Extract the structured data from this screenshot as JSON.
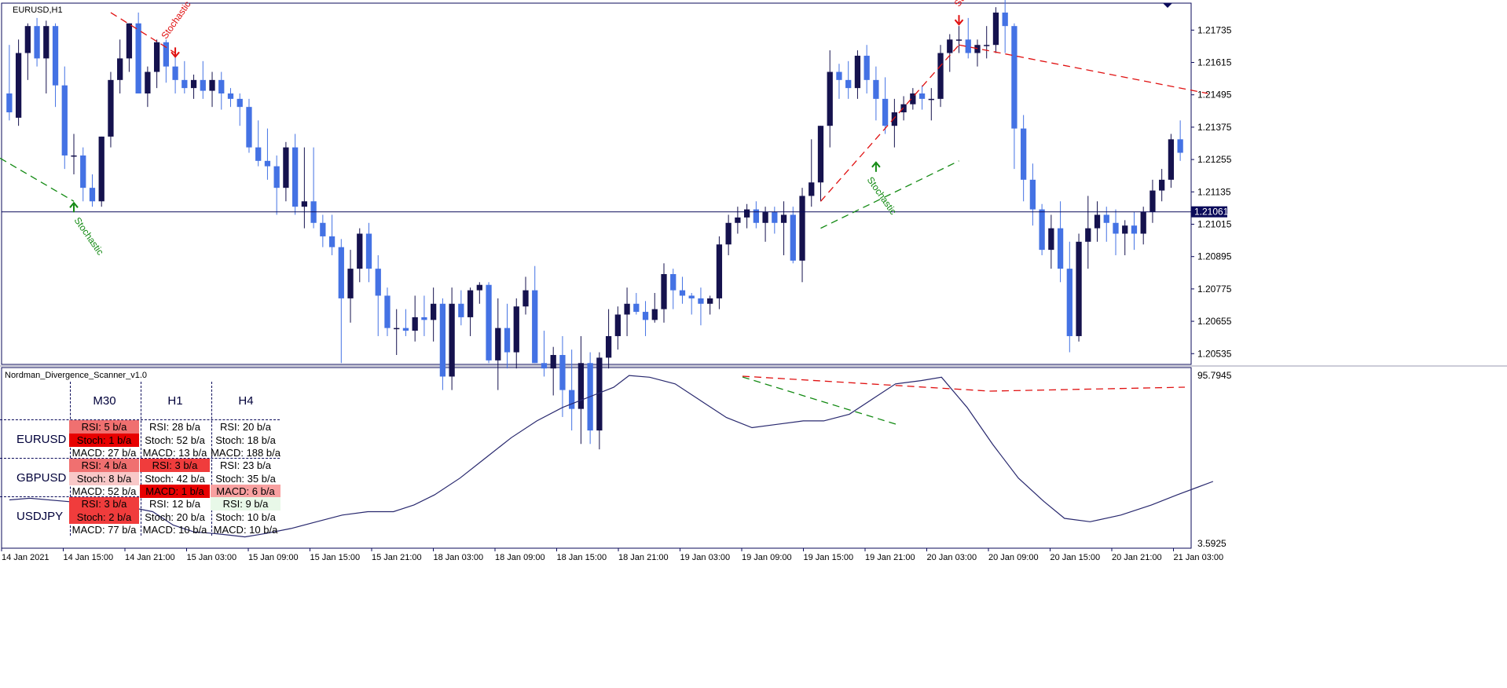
{
  "window": {
    "symbol_title": "EURUSD,H1",
    "indicator_title": "Nordman_Divergence_Scanner_v1.0",
    "current_price_label": "1.21061"
  },
  "colors": {
    "bull": "#4472e4",
    "bear": "#15124e",
    "axis": "#0a0a5a",
    "divergence_bear": "#e01010",
    "divergence_bull": "#138a13",
    "stoch_line": "#28286e"
  },
  "price_axis": {
    "ticks": [
      "1.21735",
      "1.21615",
      "1.21495",
      "1.21375",
      "1.21255",
      "1.21135",
      "1.21015",
      "1.20895",
      "1.20775",
      "1.20655",
      "1.20535"
    ],
    "range": [
      1.20495,
      1.21835
    ]
  },
  "indicator_axis": {
    "ticks": [
      "95.7945",
      "3.5925"
    ]
  },
  "time_axis": {
    "labels": [
      "14 Jan 2021",
      "14 Jan 15:00",
      "14 Jan 21:00",
      "15 Jan 03:00",
      "15 Jan 09:00",
      "15 Jan 15:00",
      "15 Jan 21:00",
      "18 Jan 03:00",
      "18 Jan 09:00",
      "18 Jan 15:00",
      "18 Jan 21:00",
      "19 Jan 03:00",
      "19 Jan 09:00",
      "19 Jan 15:00",
      "19 Jan 21:00",
      "20 Jan 03:00",
      "20 Jan 09:00",
      "20 Jan 15:00",
      "20 Jan 21:00",
      "21 Jan 03:00"
    ]
  },
  "annotations": {
    "stoch_label": "Stochastic"
  },
  "scanner": {
    "timeframes": [
      "M30",
      "H1",
      "H4"
    ],
    "rows": [
      {
        "symbol": "EURUSD",
        "cells": [
          [
            "RSI: 5 b/a",
            "Stoch: 1 b/a",
            "MACD: 27 b/a"
          ],
          [
            "RSI: 28 b/a",
            "Stoch: 52 b/a",
            "MACD: 13 b/a"
          ],
          [
            "RSI: 20 b/a",
            "Stoch: 18 b/a",
            "MACD: 188 b/a"
          ]
        ]
      },
      {
        "symbol": "GBPUSD",
        "cells": [
          [
            "RSI: 4 b/a",
            "Stoch: 8 b/a",
            "MACD: 52 b/a"
          ],
          [
            "RSI: 3 b/a",
            "Stoch: 42 b/a",
            "MACD: 1 b/a"
          ],
          [
            "RSI: 23 b/a",
            "Stoch: 35 b/a",
            "MACD: 6 b/a"
          ]
        ]
      },
      {
        "symbol": "USDJPY",
        "cells": [
          [
            "RSI: 3 b/a",
            "Stoch: 2 b/a",
            "MACD: 77 b/a"
          ],
          [
            "RSI: 12 b/a",
            "Stoch: 20 b/a",
            "MACD: 10 b/a"
          ],
          [
            "RSI: 9 b/a",
            "Stoch: 10 b/a",
            "MACD: 10 b/a"
          ]
        ]
      }
    ],
    "highlight_colors": [
      [
        [
          "#f07070",
          "#e80000",
          ""
        ],
        [
          "",
          "",
          ""
        ],
        [
          "",
          "",
          ""
        ]
      ],
      [
        [
          "#f07070",
          "#f8c8c8",
          ""
        ],
        [
          "#f03c3c",
          "",
          "#e80000"
        ],
        [
          "",
          "",
          "#f8a0a0"
        ]
      ],
      [
        [
          "#f03c3c",
          "#f03c3c",
          ""
        ],
        [
          "",
          "",
          ""
        ],
        [
          "#e8f8e8",
          "",
          ""
        ]
      ]
    ]
  },
  "chart_data": {
    "type": "candlestick",
    "symbol": "EURUSD",
    "timeframe": "H1",
    "ohlc": [
      [
        1.215,
        1.2168,
        1.214,
        1.2143
      ],
      [
        1.2141,
        1.217,
        1.2138,
        1.2165
      ],
      [
        1.2165,
        1.2176,
        1.2155,
        1.2175
      ],
      [
        1.2175,
        1.2178,
        1.216,
        1.2163
      ],
      [
        1.2163,
        1.2177,
        1.215,
        1.2175
      ],
      [
        1.2175,
        1.2176,
        1.2145,
        1.2153
      ],
      [
        1.2153,
        1.216,
        1.2122,
        1.2127
      ],
      [
        1.2127,
        1.2135,
        1.212,
        1.2127
      ],
      [
        1.2127,
        1.213,
        1.211,
        1.2115
      ],
      [
        1.2115,
        1.212,
        1.2108,
        1.211
      ],
      [
        1.211,
        1.2134,
        1.2108,
        1.2134
      ],
      [
        1.2134,
        1.2158,
        1.213,
        1.2155
      ],
      [
        1.2155,
        1.217,
        1.215,
        1.2163
      ],
      [
        1.2163,
        1.2176,
        1.2158,
        1.2176
      ],
      [
        1.2176,
        1.218,
        1.215,
        1.215
      ],
      [
        1.215,
        1.216,
        1.2145,
        1.2158
      ],
      [
        1.2158,
        1.217,
        1.2152,
        1.2169
      ],
      [
        1.2169,
        1.217,
        1.2154,
        1.216
      ],
      [
        1.216,
        1.2165,
        1.215,
        1.2155
      ],
      [
        1.2155,
        1.2162,
        1.215,
        1.2152
      ],
      [
        1.2152,
        1.2157,
        1.2148,
        1.2155
      ],
      [
        1.2155,
        1.2162,
        1.2148,
        1.2151
      ],
      [
        1.2151,
        1.2158,
        1.2145,
        1.2155
      ],
      [
        1.2155,
        1.2158,
        1.2144,
        1.215
      ],
      [
        1.215,
        1.2152,
        1.2145,
        1.2148
      ],
      [
        1.2148,
        1.215,
        1.2138,
        1.2145
      ],
      [
        1.2145,
        1.2148,
        1.2128,
        1.213
      ],
      [
        1.213,
        1.214,
        1.2123,
        1.2125
      ],
      [
        1.2125,
        1.2137,
        1.2118,
        1.2123
      ],
      [
        1.2123,
        1.2127,
        1.2105,
        1.2115
      ],
      [
        1.2115,
        1.2132,
        1.211,
        1.213
      ],
      [
        1.213,
        1.2135,
        1.2105,
        1.2108
      ],
      [
        1.2108,
        1.213,
        1.21,
        1.211
      ],
      [
        1.211,
        1.213,
        1.21,
        1.2102
      ],
      [
        1.2102,
        1.2105,
        1.2093,
        1.2097
      ],
      [
        1.2097,
        1.2105,
        1.209,
        1.2093
      ],
      [
        1.2093,
        1.2096,
        1.205,
        1.2074
      ],
      [
        1.2074,
        1.2092,
        1.2065,
        1.2085
      ],
      [
        1.2085,
        1.21,
        1.208,
        1.2098
      ],
      [
        1.2098,
        1.2102,
        1.208,
        1.2085
      ],
      [
        1.2085,
        1.209,
        1.206,
        1.2075
      ],
      [
        1.2075,
        1.2078,
        1.206,
        1.2063
      ],
      [
        1.2063,
        1.207,
        1.2053,
        1.2063
      ],
      [
        1.2063,
        1.207,
        1.206,
        1.2062
      ],
      [
        1.2062,
        1.2075,
        1.2058,
        1.2067
      ],
      [
        1.2067,
        1.2075,
        1.206,
        1.2066
      ],
      [
        1.2066,
        1.2078,
        1.2058,
        1.2072
      ],
      [
        1.2072,
        1.2074,
        1.204,
        1.2045
      ],
      [
        1.2045,
        1.2078,
        1.204,
        1.2072
      ],
      [
        1.2072,
        1.2077,
        1.2064,
        1.2067
      ],
      [
        1.2067,
        1.2078,
        1.206,
        1.2077
      ],
      [
        1.2077,
        1.208,
        1.2072,
        1.2079
      ],
      [
        1.2079,
        1.208,
        1.205,
        1.2051
      ],
      [
        1.2051,
        1.2074,
        1.204,
        1.2063
      ],
      [
        1.2063,
        1.2072,
        1.2048,
        1.2054
      ],
      [
        1.2054,
        1.2074,
        1.2048,
        1.2071
      ],
      [
        1.2071,
        1.2082,
        1.2068,
        1.2077
      ],
      [
        1.2077,
        1.2086,
        1.205,
        1.205
      ],
      [
        1.205,
        1.2062,
        1.2045,
        1.2048
      ],
      [
        1.2048,
        1.2056,
        1.2038,
        1.2053
      ],
      [
        1.2053,
        1.206,
        1.203,
        1.204
      ],
      [
        1.204,
        1.2055,
        1.2025,
        1.2033
      ],
      [
        1.2033,
        1.206,
        1.202,
        1.205
      ],
      [
        1.205,
        1.2054,
        1.202,
        1.2025
      ],
      [
        1.2025,
        1.2054,
        1.2018,
        1.2052
      ],
      [
        1.2052,
        1.207,
        1.2048,
        1.206
      ],
      [
        1.206,
        1.2071,
        1.2055,
        1.2068
      ],
      [
        1.2068,
        1.2078,
        1.206,
        1.2072
      ],
      [
        1.2072,
        1.2076,
        1.2068,
        1.2069
      ],
      [
        1.2069,
        1.2073,
        1.206,
        1.2066
      ],
      [
        1.2066,
        1.2076,
        1.2065,
        1.207
      ],
      [
        1.207,
        1.2087,
        1.2065,
        1.2083
      ],
      [
        1.2083,
        1.2085,
        1.207,
        1.2077
      ],
      [
        1.2077,
        1.2082,
        1.2072,
        1.2075
      ],
      [
        1.2075,
        1.2076,
        1.2068,
        1.2074
      ],
      [
        1.2074,
        1.2078,
        1.2064,
        1.2072
      ],
      [
        1.2072,
        1.2075,
        1.2068,
        1.2074
      ],
      [
        1.2074,
        1.2097,
        1.207,
        1.2094
      ],
      [
        1.2094,
        1.2105,
        1.209,
        1.2102
      ],
      [
        1.2102,
        1.2108,
        1.2098,
        1.2104
      ],
      [
        1.2104,
        1.2109,
        1.21,
        1.2107
      ],
      [
        1.2107,
        1.211,
        1.21,
        1.2102
      ],
      [
        1.2102,
        1.2108,
        1.2095,
        1.2106
      ],
      [
        1.2106,
        1.2108,
        1.2098,
        1.2102
      ],
      [
        1.2102,
        1.211,
        1.209,
        1.2105
      ],
      [
        1.2105,
        1.2108,
        1.2087,
        1.2088
      ],
      [
        1.2088,
        1.2115,
        1.208,
        1.2112
      ],
      [
        1.2112,
        1.2133,
        1.2108,
        1.2117
      ],
      [
        1.2117,
        1.2138,
        1.211,
        1.2138
      ],
      [
        1.2138,
        1.2166,
        1.213,
        1.2158
      ],
      [
        1.2158,
        1.2161,
        1.2148,
        1.2155
      ],
      [
        1.2155,
        1.2162,
        1.2148,
        1.2152
      ],
      [
        1.2152,
        1.2166,
        1.2148,
        1.2164
      ],
      [
        1.2164,
        1.2168,
        1.215,
        1.2155
      ],
      [
        1.2155,
        1.216,
        1.214,
        1.2148
      ],
      [
        1.2148,
        1.2156,
        1.2135,
        1.2138
      ],
      [
        1.2138,
        1.2148,
        1.213,
        1.2143
      ],
      [
        1.2143,
        1.2149,
        1.214,
        1.2146
      ],
      [
        1.2146,
        1.2152,
        1.2144,
        1.215
      ],
      [
        1.215,
        1.2153,
        1.2144,
        1.2148
      ],
      [
        1.2148,
        1.2152,
        1.214,
        1.2148
      ],
      [
        1.2148,
        1.2168,
        1.2145,
        1.2165
      ],
      [
        1.2165,
        1.2172,
        1.2158,
        1.217
      ],
      [
        1.217,
        1.2175,
        1.2165,
        1.217
      ],
      [
        1.217,
        1.2178,
        1.2163,
        1.2165
      ],
      [
        1.2165,
        1.217,
        1.216,
        1.2168
      ],
      [
        1.2168,
        1.2175,
        1.2163,
        1.2168
      ],
      [
        1.2168,
        1.2182,
        1.2165,
        1.218
      ],
      [
        1.218,
        1.2186,
        1.2165,
        1.2175
      ],
      [
        1.2175,
        1.2176,
        1.2122,
        1.2137
      ],
      [
        1.2137,
        1.2142,
        1.211,
        1.2118
      ],
      [
        1.2118,
        1.2124,
        1.2101,
        1.2107
      ],
      [
        1.2107,
        1.2109,
        1.209,
        1.2092
      ],
      [
        1.2092,
        1.2105,
        1.2085,
        1.21
      ],
      [
        1.21,
        1.211,
        1.208,
        1.2085
      ],
      [
        1.2085,
        1.2095,
        1.2054,
        1.206
      ],
      [
        1.206,
        1.2098,
        1.2058,
        1.2095
      ],
      [
        1.2095,
        1.2112,
        1.2085,
        1.21
      ],
      [
        1.21,
        1.211,
        1.2095,
        1.2105
      ],
      [
        1.2105,
        1.2108,
        1.2095,
        1.2102
      ],
      [
        1.2102,
        1.2107,
        1.209,
        1.2098
      ],
      [
        1.2098,
        1.2103,
        1.209,
        1.2101
      ],
      [
        1.2101,
        1.2106,
        1.2092,
        1.2098
      ],
      [
        1.2098,
        1.2108,
        1.2094,
        1.2106
      ],
      [
        1.2106,
        1.2118,
        1.2102,
        1.2114
      ],
      [
        1.2114,
        1.2122,
        1.211,
        1.2118
      ],
      [
        1.2118,
        1.2135,
        1.2115,
        1.2133
      ],
      [
        1.2133,
        1.214,
        1.2125,
        1.2128
      ]
    ]
  }
}
